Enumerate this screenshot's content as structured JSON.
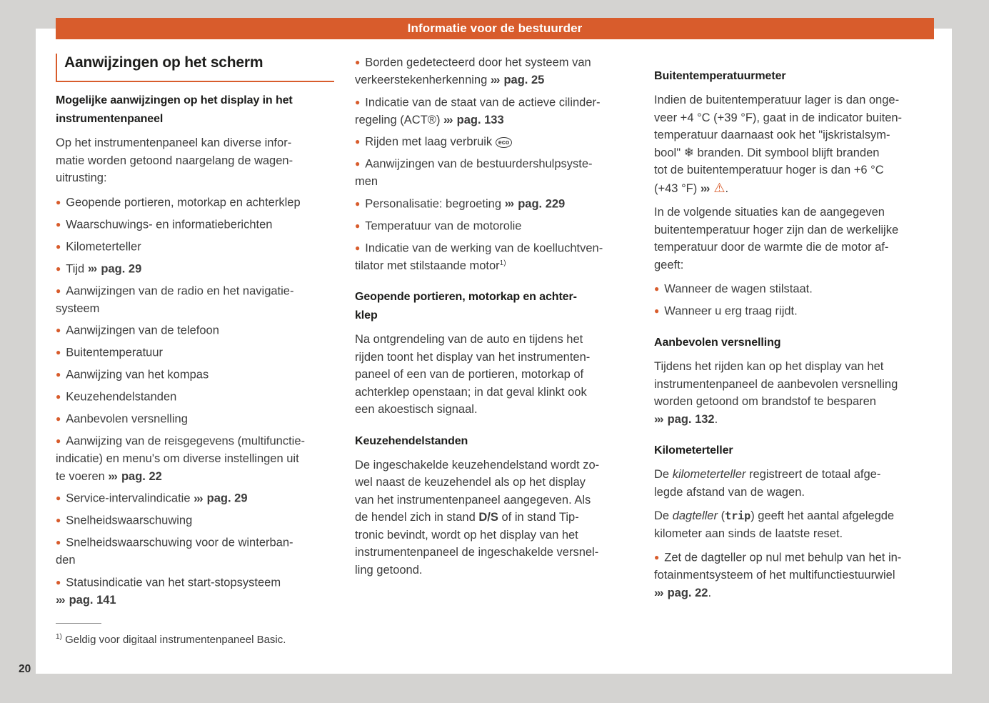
{
  "header": {
    "title": "Informatie voor de bestuurder"
  },
  "section_heading": "Aanwijzingen op het scherm",
  "page_number": "20",
  "colors": {
    "accent": "#d85c2c",
    "body_text": "#3c3c3c",
    "heading_text": "#1d1d1b",
    "canvas_background": "#d4d3d1",
    "page_background": "#ffffff"
  },
  "icons": {
    "bullet": "●",
    "cross_reference": "›››",
    "warning": "⚠",
    "snowflake": "❄",
    "eco_badge": "eco"
  },
  "footnote": {
    "marker": "1)",
    "text": "Geldig voor digitaal instrumentenpaneel Basic."
  },
  "columns": [
    {
      "blocks": [
        {
          "type": "subheading",
          "runs": [
            {
              "t": "Mogelijke aanwijzingen op het display in het\ninstrumentenpaneel"
            }
          ]
        },
        {
          "type": "paragraph",
          "runs": [
            {
              "t": "Op het instrumentenpaneel kan diverse infor-\nmatie worden getoond naargelang de wagen-\nuitrusting:"
            }
          ]
        },
        {
          "type": "bullet",
          "runs": [
            {
              "t": "Geopende portieren, motorkap en achterklep"
            }
          ]
        },
        {
          "type": "bullet",
          "runs": [
            {
              "t": "Waarschuwings- en informatieberichten"
            }
          ]
        },
        {
          "type": "bullet",
          "runs": [
            {
              "t": "Kilometerteller"
            }
          ]
        },
        {
          "type": "bullet",
          "runs": [
            {
              "t": "Tijd "
            },
            {
              "t": "›››",
              "s": "ch"
            },
            {
              "t": " "
            },
            {
              "t": "pag. 29",
              "s": "b"
            }
          ]
        },
        {
          "type": "bullet",
          "runs": [
            {
              "t": "Aanwijzingen van de radio en het navigatie-\nsysteem"
            }
          ]
        },
        {
          "type": "bullet",
          "runs": [
            {
              "t": "Aanwijzingen van de telefoon"
            }
          ]
        },
        {
          "type": "bullet",
          "runs": [
            {
              "t": "Buitentemperatuur"
            }
          ]
        },
        {
          "type": "bullet",
          "runs": [
            {
              "t": "Aanwijzing van het kompas"
            }
          ]
        },
        {
          "type": "bullet",
          "runs": [
            {
              "t": "Keuzehendelstanden"
            }
          ]
        },
        {
          "type": "bullet",
          "runs": [
            {
              "t": "Aanbevolen versnelling"
            }
          ]
        },
        {
          "type": "bullet",
          "runs": [
            {
              "t": "Aanwijzing van de reisgegevens (multifunctie-\nindicatie) en menu's om diverse instellingen uit\nte voeren "
            },
            {
              "t": "›››",
              "s": "ch"
            },
            {
              "t": " "
            },
            {
              "t": "pag. 22",
              "s": "b"
            }
          ]
        },
        {
          "type": "bullet",
          "runs": [
            {
              "t": "Service-intervalindicatie "
            },
            {
              "t": "›››",
              "s": "ch"
            },
            {
              "t": " "
            },
            {
              "t": "pag. 29",
              "s": "b"
            }
          ]
        },
        {
          "type": "bullet",
          "runs": [
            {
              "t": "Snelheidswaarschuwing"
            }
          ]
        },
        {
          "type": "bullet",
          "runs": [
            {
              "t": "Snelheidswaarschuwing voor de winterban-\nden"
            }
          ]
        },
        {
          "type": "bullet",
          "runs": [
            {
              "t": "Statusindicatie van het start-stopsysteem\n"
            },
            {
              "t": "›››",
              "s": "ch"
            },
            {
              "t": " "
            },
            {
              "t": "pag. 141",
              "s": "b"
            }
          ]
        }
      ]
    },
    {
      "blocks": [
        {
          "type": "bullet",
          "runs": [
            {
              "t": "Borden gedetecteerd door het systeem van\nverkeerstekenherkenning "
            },
            {
              "t": "›››",
              "s": "ch"
            },
            {
              "t": " "
            },
            {
              "t": "pag. 25",
              "s": "b"
            }
          ]
        },
        {
          "type": "bullet",
          "runs": [
            {
              "t": "Indicatie van de staat van de actieve cilinder-\nregeling (ACT®) "
            },
            {
              "t": "›››",
              "s": "ch"
            },
            {
              "t": " "
            },
            {
              "t": "pag. 133",
              "s": "b"
            }
          ]
        },
        {
          "type": "bullet",
          "runs": [
            {
              "t": "Rijden met laag verbruik "
            },
            {
              "t": "eco",
              "s": "eco"
            }
          ]
        },
        {
          "type": "bullet",
          "runs": [
            {
              "t": "Aanwijzingen van de bestuurdershulpsyste-\nmen"
            }
          ]
        },
        {
          "type": "bullet",
          "runs": [
            {
              "t": "Personalisatie: begroeting "
            },
            {
              "t": "›››",
              "s": "ch"
            },
            {
              "t": " "
            },
            {
              "t": "pag. 229",
              "s": "b"
            }
          ]
        },
        {
          "type": "bullet",
          "runs": [
            {
              "t": "Temperatuur van de motorolie"
            }
          ]
        },
        {
          "type": "bullet",
          "runs": [
            {
              "t": "Indicatie van de werking van de koelluchtven-\ntilator met stilstaande motor"
            },
            {
              "t": "1)",
              "s": "sup"
            }
          ]
        },
        {
          "type": "heading",
          "runs": [
            {
              "t": "Geopende portieren, motorkap en achter-\nklep"
            }
          ]
        },
        {
          "type": "paragraph",
          "runs": [
            {
              "t": "Na ontgrendeling van de auto en tijdens het\nrijden toont het display van het instrumenten-\npaneel of een van de portieren, motorkap of\nachterklep openstaan; in dat geval klinkt ook\neen akoestisch signaal."
            }
          ]
        },
        {
          "type": "heading",
          "runs": [
            {
              "t": "Keuzehendelstanden"
            }
          ]
        },
        {
          "type": "paragraph",
          "runs": [
            {
              "t": "De ingeschakelde keuzehendelstand wordt zo-\nwel naast de keuzehendel als op het display\nvan het instrumentenpaneel aangegeven. Als\nde hendel zich in stand "
            },
            {
              "t": "D/S",
              "s": "b"
            },
            {
              "t": " of in stand Tip-\ntronic bevindt, wordt op het display van het\ninstrumentenpaneel de ingeschakelde versnel-\nling getoond."
            }
          ]
        }
      ]
    },
    {
      "blocks": [
        {
          "type": "heading",
          "runs": [
            {
              "t": "Buitentemperatuurmeter"
            }
          ]
        },
        {
          "type": "paragraph",
          "runs": [
            {
              "t": "Indien de buitentemperatuur lager is dan onge-\nveer +4 °C (+39 °F), gaat in de indicator buiten-\ntemperatuur daarnaast ook het \"ijskristalsym-\nbool\" "
            },
            {
              "t": "❄",
              "s": "snow"
            },
            {
              "t": " branden. Dit symbool blijft branden\ntot de buitentemperatuur hoger is dan +6 °C\n(+43 °F) "
            },
            {
              "t": "›››",
              "s": "ch"
            },
            {
              "t": " "
            },
            {
              "t": "⚠",
              "s": "warn"
            },
            {
              "t": "."
            }
          ]
        },
        {
          "type": "paragraph",
          "runs": [
            {
              "t": "In de volgende situaties kan de aangegeven\nbuitentemperatuur hoger zijn dan de werkelijke\ntemperatuur door de warmte die de motor af-\ngeeft:"
            }
          ]
        },
        {
          "type": "bullet",
          "runs": [
            {
              "t": "Wanneer de wagen stilstaat."
            }
          ]
        },
        {
          "type": "bullet",
          "runs": [
            {
              "t": "Wanneer u erg traag rijdt."
            }
          ]
        },
        {
          "type": "heading",
          "runs": [
            {
              "t": "Aanbevolen versnelling"
            }
          ]
        },
        {
          "type": "paragraph",
          "runs": [
            {
              "t": "Tijdens het rijden kan op het display van het\ninstrumentenpaneel de aanbevolen versnelling\nworden getoond om brandstof te besparen\n"
            },
            {
              "t": "›››",
              "s": "ch"
            },
            {
              "t": " "
            },
            {
              "t": "pag. 132",
              "s": "b"
            },
            {
              "t": "."
            }
          ]
        },
        {
          "type": "heading",
          "runs": [
            {
              "t": "Kilometerteller"
            }
          ]
        },
        {
          "type": "paragraph",
          "runs": [
            {
              "t": "De "
            },
            {
              "t": "kilometerteller",
              "s": "i"
            },
            {
              "t": " registreert de totaal afge-\nlegde afstand van de wagen."
            }
          ]
        },
        {
          "type": "paragraph",
          "runs": [
            {
              "t": "De "
            },
            {
              "t": "dagteller",
              "s": "i"
            },
            {
              "t": " ("
            },
            {
              "t": "trip",
              "s": "m"
            },
            {
              "t": ") geeft het aantal afgelegde\nkilometer aan sinds de laatste reset."
            }
          ]
        },
        {
          "type": "bullet",
          "runs": [
            {
              "t": "Zet de dagteller op nul met behulp van het in-\nfotainmentsysteem of het multifunctiestuurwiel\n"
            },
            {
              "t": "›››",
              "s": "ch"
            },
            {
              "t": " "
            },
            {
              "t": "pag. 22",
              "s": "b"
            },
            {
              "t": "."
            }
          ]
        }
      ]
    }
  ]
}
